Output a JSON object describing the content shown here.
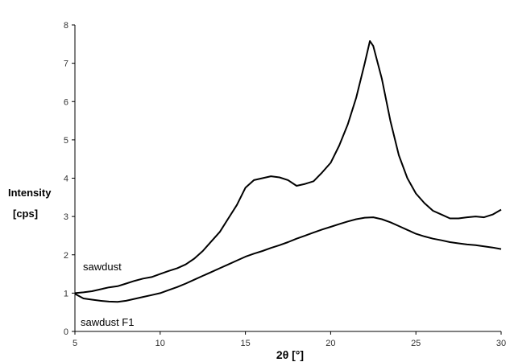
{
  "chart_data": {
    "type": "line",
    "title": "",
    "xlabel": "2θ [°]",
    "ylabel_line1": "Intensity",
    "ylabel_line2": "[cps]",
    "xlim": [
      5,
      30
    ],
    "ylim": [
      0,
      8
    ],
    "xticks": [
      5,
      10,
      15,
      20,
      25,
      30
    ],
    "yticks": [
      0,
      1,
      2,
      3,
      4,
      5,
      6,
      7,
      8
    ],
    "grid": false,
    "series": [
      {
        "name": "sawdust",
        "x": [
          5.0,
          5.5,
          6.0,
          6.5,
          7.0,
          7.5,
          8.0,
          8.5,
          9.0,
          9.5,
          10.0,
          10.5,
          11.0,
          11.5,
          12.0,
          12.5,
          13.0,
          13.5,
          14.0,
          14.5,
          15.0,
          15.5,
          16.0,
          16.5,
          17.0,
          17.5,
          18.0,
          18.5,
          19.0,
          19.5,
          20.0,
          20.5,
          21.0,
          21.5,
          22.0,
          22.3,
          22.5,
          23.0,
          23.5,
          24.0,
          24.5,
          25.0,
          25.5,
          26.0,
          26.5,
          27.0,
          27.5,
          28.0,
          28.5,
          29.0,
          29.5,
          30.0
        ],
        "y": [
          1.0,
          1.02,
          1.05,
          1.1,
          1.15,
          1.18,
          1.25,
          1.32,
          1.38,
          1.42,
          1.5,
          1.58,
          1.65,
          1.75,
          1.9,
          2.1,
          2.35,
          2.6,
          2.95,
          3.3,
          3.75,
          3.95,
          4.0,
          4.05,
          4.02,
          3.95,
          3.8,
          3.85,
          3.92,
          4.15,
          4.4,
          4.85,
          5.4,
          6.1,
          7.0,
          7.58,
          7.45,
          6.6,
          5.5,
          4.6,
          4.0,
          3.6,
          3.35,
          3.15,
          3.05,
          2.95,
          2.95,
          2.98,
          3.0,
          2.98,
          3.05,
          3.18
        ]
      },
      {
        "name": "sawdust F1",
        "x": [
          5.0,
          5.5,
          6.0,
          6.5,
          7.0,
          7.5,
          8.0,
          8.5,
          9.0,
          9.5,
          10.0,
          10.5,
          11.0,
          11.5,
          12.0,
          12.5,
          13.0,
          13.5,
          14.0,
          14.5,
          15.0,
          15.5,
          16.0,
          16.5,
          17.0,
          17.5,
          18.0,
          18.5,
          19.0,
          19.5,
          20.0,
          20.5,
          21.0,
          21.5,
          22.0,
          22.5,
          23.0,
          23.5,
          24.0,
          24.5,
          25.0,
          25.5,
          26.0,
          26.5,
          27.0,
          27.5,
          28.0,
          28.5,
          29.0,
          29.5,
          30.0
        ],
        "y": [
          0.98,
          0.86,
          0.83,
          0.8,
          0.78,
          0.77,
          0.8,
          0.85,
          0.9,
          0.95,
          1.0,
          1.08,
          1.16,
          1.25,
          1.35,
          1.45,
          1.55,
          1.65,
          1.75,
          1.85,
          1.95,
          2.03,
          2.1,
          2.18,
          2.25,
          2.33,
          2.42,
          2.5,
          2.58,
          2.66,
          2.73,
          2.8,
          2.87,
          2.93,
          2.97,
          2.98,
          2.93,
          2.85,
          2.75,
          2.65,
          2.55,
          2.48,
          2.42,
          2.38,
          2.33,
          2.3,
          2.27,
          2.25,
          2.22,
          2.19,
          2.15
        ]
      }
    ]
  }
}
